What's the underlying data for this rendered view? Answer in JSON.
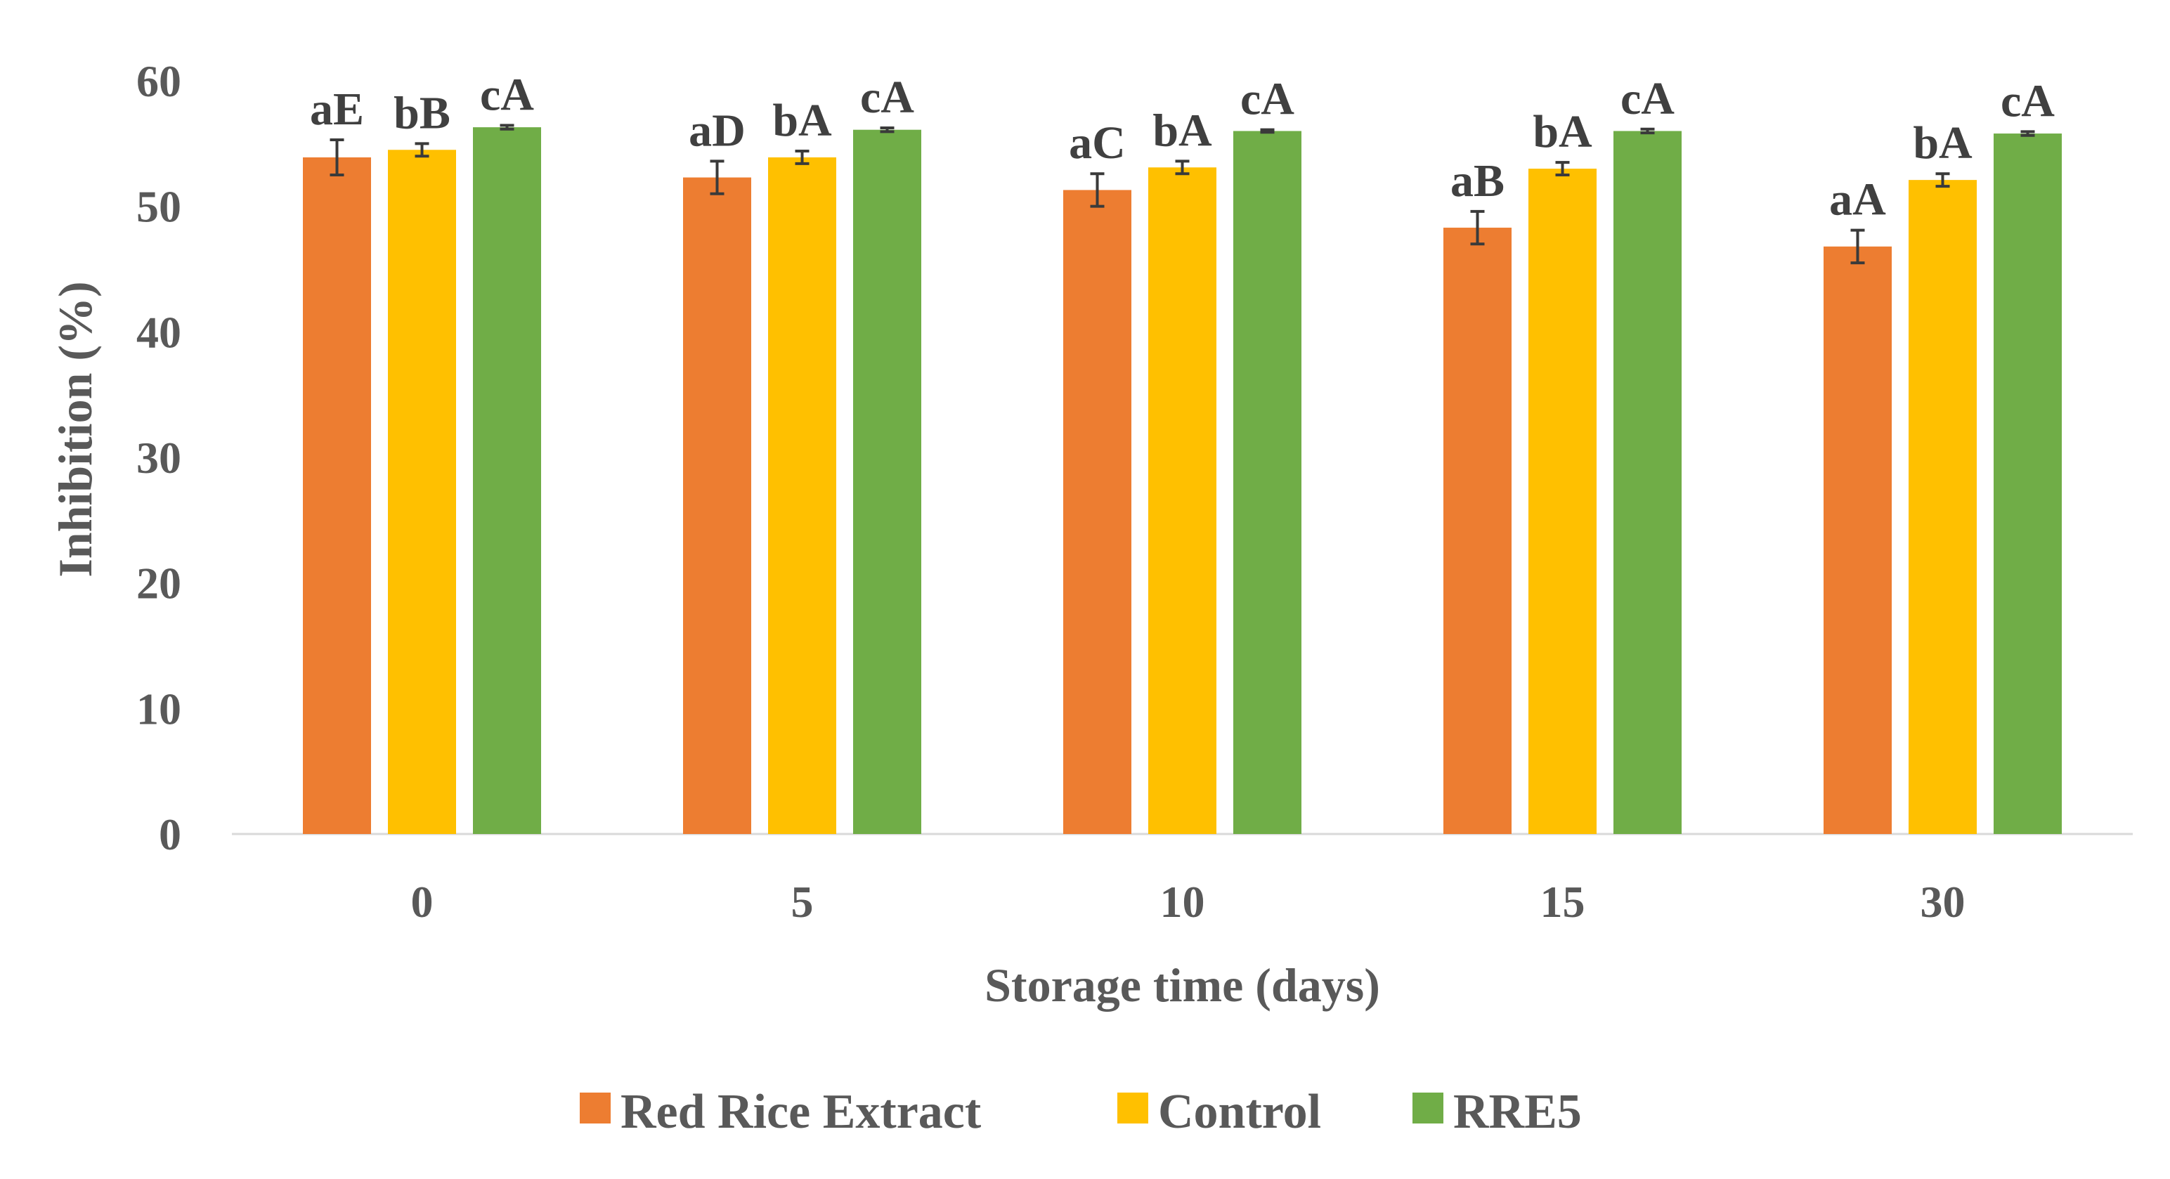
{
  "chart_data": {
    "type": "bar",
    "title": "",
    "xlabel": "Storage time (days)",
    "ylabel": "Inhibition (%)",
    "ylim": [
      0,
      60
    ],
    "yticks": [
      0,
      10,
      20,
      30,
      40,
      50,
      60
    ],
    "grid": false,
    "legend_position": "bottom",
    "categories": [
      "0",
      "5",
      "10",
      "15",
      "30"
    ],
    "series": [
      {
        "name": "Red Rice Extract",
        "color": "#ED7D31",
        "values": [
          53.9,
          52.3,
          51.3,
          48.3,
          46.8
        ],
        "errors": [
          1.4,
          1.3,
          1.3,
          1.3,
          1.3
        ],
        "labels": [
          "aE",
          "aD",
          "aC",
          "aB",
          "aA"
        ]
      },
      {
        "name": "Control",
        "color": "#FFC000",
        "values": [
          54.5,
          53.9,
          53.1,
          53.0,
          52.1
        ],
        "errors": [
          0.5,
          0.5,
          0.5,
          0.5,
          0.5
        ],
        "labels": [
          "bB",
          "bA",
          "bA",
          "bA",
          "bA"
        ]
      },
      {
        "name": "RRE5",
        "color": "#70AD47",
        "values": [
          56.3,
          56.1,
          56.0,
          56.0,
          55.8
        ],
        "errors": [
          0.15,
          0.15,
          0.1,
          0.15,
          0.15
        ],
        "labels": [
          "cA",
          "cA",
          "cA",
          "cA",
          "cA"
        ]
      }
    ]
  }
}
